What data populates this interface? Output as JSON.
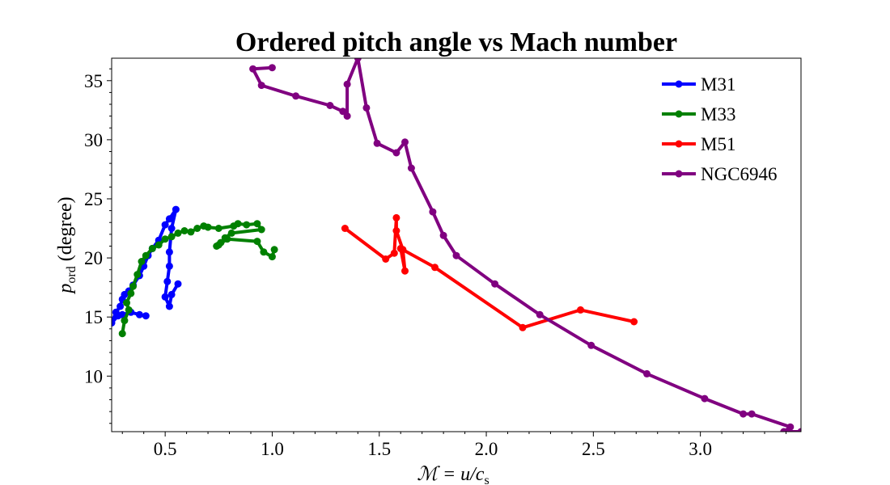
{
  "chart_data": {
    "type": "line",
    "title": "Ordered pitch angle vs Mach number",
    "xlabel": "ℳ = u/c",
    "xlabel_sub": "s",
    "ylabel": "p",
    "ylabel_sub": "ord",
    "ylabel_suffix": " (degree)",
    "xlim": [
      0.25,
      3.47
    ],
    "ylim": [
      5.3,
      36.9
    ],
    "xticks": [
      0.5,
      1.0,
      1.5,
      2.0,
      2.5,
      3.0
    ],
    "xtick_labels": [
      "0.5",
      "1.0",
      "1.5",
      "2.0",
      "2.5",
      "3.0"
    ],
    "yticks": [
      10,
      15,
      20,
      25,
      30,
      35
    ],
    "ytick_labels": [
      "10",
      "15",
      "20",
      "25",
      "30",
      "35"
    ],
    "grid": false,
    "legend_position": "top-right",
    "series": [
      {
        "name": "M31",
        "color": "#0000ff",
        "points": [
          [
            0.41,
            15.1
          ],
          [
            0.38,
            15.2
          ],
          [
            0.34,
            15.4
          ],
          [
            0.3,
            15.2
          ],
          [
            0.28,
            15.1
          ],
          [
            0.25,
            14.5
          ],
          [
            0.27,
            15.4
          ],
          [
            0.29,
            15.9
          ],
          [
            0.3,
            16.5
          ],
          [
            0.31,
            16.9
          ],
          [
            0.33,
            17.2
          ],
          [
            0.35,
            17.7
          ],
          [
            0.38,
            18.5
          ],
          [
            0.4,
            19.3
          ],
          [
            0.42,
            20.2
          ],
          [
            0.44,
            20.8
          ],
          [
            0.47,
            21.5
          ],
          [
            0.5,
            22.8
          ],
          [
            0.52,
            23.3
          ],
          [
            0.55,
            24.1
          ],
          [
            0.53,
            22.5
          ],
          [
            0.52,
            20.5
          ],
          [
            0.52,
            19.3
          ],
          [
            0.51,
            18.0
          ],
          [
            0.5,
            16.7
          ],
          [
            0.52,
            15.9
          ],
          [
            0.53,
            16.9
          ],
          [
            0.56,
            17.8
          ]
        ]
      },
      {
        "name": "M33",
        "color": "#008000",
        "points": [
          [
            0.3,
            13.6
          ],
          [
            0.31,
            14.7
          ],
          [
            0.33,
            15.6
          ],
          [
            0.32,
            16.2
          ],
          [
            0.34,
            17.0
          ],
          [
            0.35,
            17.6
          ],
          [
            0.37,
            18.6
          ],
          [
            0.39,
            19.7
          ],
          [
            0.41,
            20.2
          ],
          [
            0.44,
            20.8
          ],
          [
            0.47,
            21.1
          ],
          [
            0.5,
            21.6
          ],
          [
            0.53,
            21.8
          ],
          [
            0.56,
            22.1
          ],
          [
            0.59,
            22.3
          ],
          [
            0.62,
            22.2
          ],
          [
            0.65,
            22.5
          ],
          [
            0.68,
            22.7
          ],
          [
            0.7,
            22.6
          ],
          [
            0.75,
            22.5
          ],
          [
            0.82,
            22.7
          ],
          [
            0.84,
            22.9
          ],
          [
            0.88,
            22.8
          ],
          [
            0.93,
            22.9
          ],
          [
            0.95,
            22.4
          ],
          [
            0.81,
            22.1
          ],
          [
            0.78,
            21.7
          ],
          [
            0.76,
            21.3
          ],
          [
            0.74,
            21.0
          ],
          [
            0.75,
            21.1
          ],
          [
            0.79,
            21.6
          ],
          [
            0.93,
            21.4
          ],
          [
            0.96,
            20.5
          ],
          [
            1.0,
            20.1
          ],
          [
            1.01,
            20.7
          ]
        ]
      },
      {
        "name": "M51",
        "color": "#ff0000",
        "points": [
          [
            1.34,
            22.5
          ],
          [
            1.53,
            19.9
          ],
          [
            1.57,
            20.4
          ],
          [
            1.58,
            23.4
          ],
          [
            1.58,
            22.3
          ],
          [
            1.61,
            20.7
          ],
          [
            1.62,
            18.9
          ],
          [
            1.6,
            20.8
          ],
          [
            1.76,
            19.2
          ],
          [
            2.17,
            14.1
          ],
          [
            2.44,
            15.6
          ],
          [
            2.69,
            14.6
          ]
        ]
      },
      {
        "name": "NGC6946",
        "color": "#800080",
        "points": [
          [
            1.0,
            36.1
          ],
          [
            0.91,
            36.0
          ],
          [
            0.95,
            34.6
          ],
          [
            1.11,
            33.7
          ],
          [
            1.27,
            32.9
          ],
          [
            1.33,
            32.4
          ],
          [
            1.35,
            32.0
          ],
          [
            1.35,
            34.7
          ],
          [
            1.4,
            36.9
          ],
          [
            1.44,
            32.7
          ],
          [
            1.49,
            29.7
          ],
          [
            1.58,
            28.9
          ],
          [
            1.62,
            29.8
          ],
          [
            1.65,
            27.6
          ],
          [
            1.75,
            23.9
          ],
          [
            1.8,
            21.9
          ],
          [
            1.86,
            20.2
          ],
          [
            2.04,
            17.8
          ],
          [
            2.25,
            15.2
          ],
          [
            2.49,
            12.6
          ],
          [
            2.75,
            10.2
          ],
          [
            3.02,
            8.1
          ],
          [
            3.2,
            6.8
          ],
          [
            3.24,
            6.8
          ],
          [
            3.42,
            5.7
          ],
          [
            3.39,
            5.3
          ],
          [
            3.47,
            5.3
          ]
        ]
      }
    ]
  }
}
